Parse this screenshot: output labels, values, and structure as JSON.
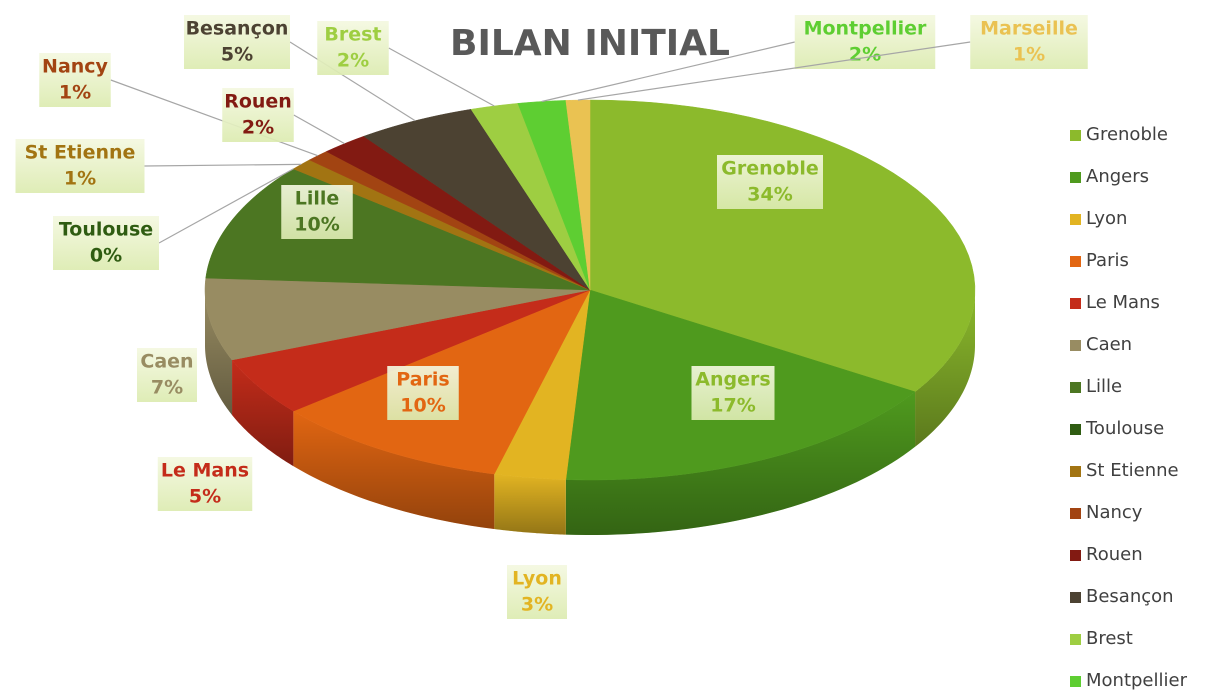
{
  "chart_data": {
    "type": "pie3d",
    "title": "BILAN INITIAL",
    "categories": [
      "Grenoble",
      "Angers",
      "Lyon",
      "Paris",
      "Le Mans",
      "Caen",
      "Lille",
      "Toulouse",
      "St Etienne",
      "Nancy",
      "Rouen",
      "Besançon",
      "Brest",
      "Montpellier",
      "Marseille"
    ],
    "values": [
      34,
      17,
      3,
      10,
      5,
      7,
      10,
      0,
      1,
      1,
      2,
      5,
      2,
      2,
      1
    ],
    "value_labels": [
      "34%",
      "17%",
      "3%",
      "10%",
      "5%",
      "7%",
      "10%",
      "0%",
      "1%",
      "1%",
      "2%",
      "5%",
      "2%",
      "2%",
      "1%"
    ],
    "colors": [
      "#8cba2c",
      "#4f9a1e",
      "#e2b422",
      "#e26612",
      "#c42c1a",
      "#988c62",
      "#4c7622",
      "#2f5c12",
      "#a27412",
      "#a24412",
      "#821a12",
      "#4c4232",
      "#9ece42",
      "#5ece32",
      "#eac252"
    ],
    "legend": "right"
  }
}
